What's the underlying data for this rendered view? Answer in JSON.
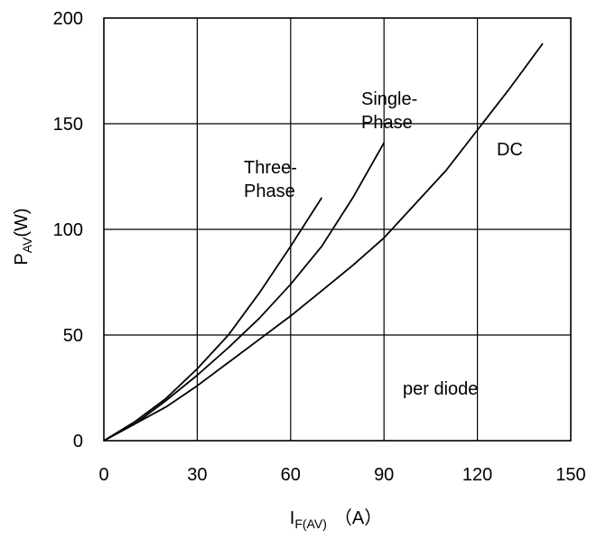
{
  "chart_data": {
    "type": "line",
    "title": "",
    "xlabel": {
      "main": "I",
      "sub": "F(AV)",
      "unit": "（A）"
    },
    "ylabel": {
      "main": "P",
      "sub": "AV",
      "unit": "(W)"
    },
    "xlim": [
      0,
      150
    ],
    "ylim": [
      0,
      200
    ],
    "xticks": [
      "0",
      "30",
      "60",
      "90",
      "120",
      "150"
    ],
    "yticks": [
      "0",
      "50",
      "100",
      "150",
      "200"
    ],
    "grid": true,
    "series": [
      {
        "name": "Three-Phase",
        "label_lines": [
          "Three-",
          "Phase"
        ],
        "x": [
          0,
          10,
          20,
          30,
          40,
          50,
          60,
          70
        ],
        "y": [
          0,
          9,
          20,
          34,
          50,
          70,
          92,
          115
        ]
      },
      {
        "name": "Single-Phase",
        "label_lines": [
          "Single-",
          "Phase"
        ],
        "x": [
          0,
          10,
          20,
          30,
          40,
          50,
          60,
          70,
          80,
          90
        ],
        "y": [
          0,
          8,
          19,
          31,
          44,
          58,
          74,
          92,
          115,
          141
        ]
      },
      {
        "name": "DC",
        "label_lines": [
          "DC"
        ],
        "x": [
          0,
          10,
          20,
          30,
          40,
          50,
          60,
          70,
          80,
          90,
          100,
          110,
          120,
          130,
          141
        ],
        "y": [
          0,
          8,
          16,
          26,
          37,
          48,
          59,
          71,
          83,
          96,
          112,
          128,
          147,
          166,
          188
        ]
      }
    ],
    "annotations": [
      "per diode"
    ]
  }
}
